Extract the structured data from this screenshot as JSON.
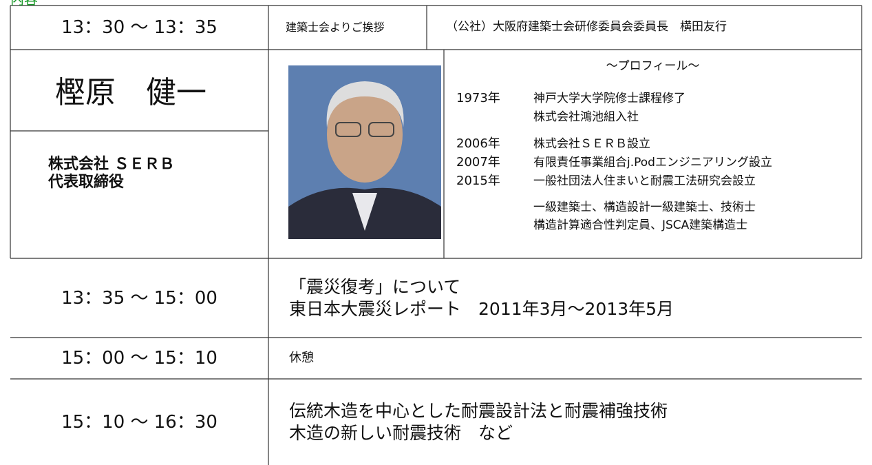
{
  "header": {
    "title": "内容"
  },
  "opening": {
    "time": "13：30 ～ 13：35",
    "title": "建築士会よりご挨拶",
    "speaker": "（公社）大阪府建築士会研修委員会委員長　横田友行"
  },
  "lecturer": {
    "name": "樫原　健一",
    "affiliation": [
      "株式会社 ＳＥＲＢ",
      "代表取締役"
    ],
    "profile": {
      "heading": "～プロフィール～",
      "history": [
        {
          "year": "1973年",
          "lines": [
            "神戸大学大学院修士課程修了",
            "株式会社鴻池組入社"
          ]
        },
        {
          "year": "2006年",
          "lines": [
            "株式会社ＳＥＲＢ設立"
          ]
        },
        {
          "year": "2007年",
          "lines": [
            "有限責任事業組合j.Podエンジニアリング設立"
          ]
        },
        {
          "year": "2015年",
          "lines": [
            "一般社団法人住まいと耐震工法研究会設立"
          ]
        }
      ],
      "qualifications": [
        "一級建築士、構造設計一級建築士、技術士",
        "構造計算適合性判定員、JSCA建築構造士"
      ]
    }
  },
  "sessions": [
    {
      "time": "13：35 ～ 15：00",
      "lines": [
        "「震災復考」について",
        "東日本大震災レポート　2011年3月～2013年5月"
      ]
    },
    {
      "time": "15：00 ～ 15：10",
      "lines": [
        "休憩"
      ]
    },
    {
      "time": "15：10 ～ 16：30",
      "lines": [
        "伝統木造を中心とした耐震設計法と耐震補強技術",
        "木造の新しい耐震技術　など"
      ]
    }
  ]
}
